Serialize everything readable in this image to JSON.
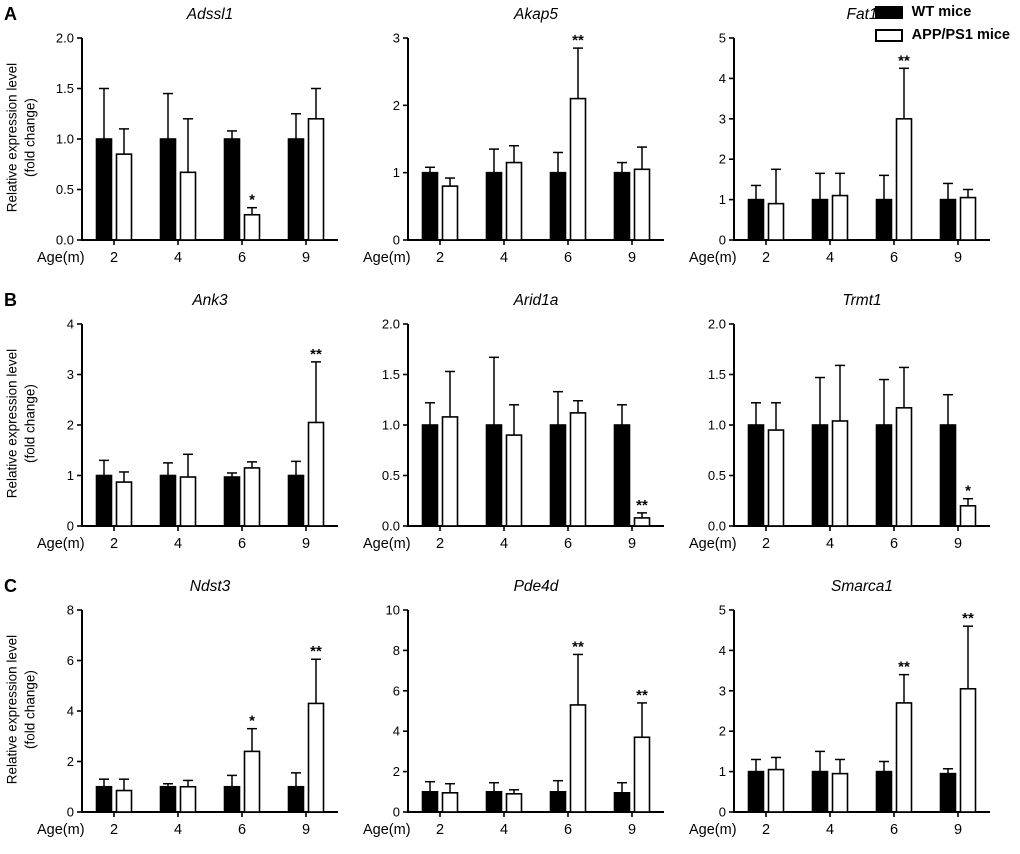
{
  "figure": {
    "panels": [
      "A",
      "B",
      "C"
    ],
    "ylabel": "Relative expression level\n(fold change)",
    "xlabel": "Age(m)",
    "categories": [
      "2",
      "4",
      "6",
      "9"
    ],
    "grid": false,
    "legend_position": "top-right",
    "colors": {
      "wt_fill": "#000000",
      "app_fill": "#ffffff",
      "axis": "#000000"
    },
    "legend": [
      {
        "label": "WT mice",
        "fill": "#000000"
      },
      {
        "label": "APP/PS1 mice",
        "fill": "#ffffff"
      }
    ]
  },
  "chart_data": [
    {
      "type": "bar",
      "panel": "A",
      "title": "Adssl1",
      "xlabel": "Age(m)",
      "categories": [
        "2",
        "4",
        "6",
        "9"
      ],
      "ylim": [
        0,
        2.0
      ],
      "ytick_labels": [
        "0.0",
        "0.5",
        "1.0",
        "1.5",
        "2.0"
      ],
      "series": [
        {
          "name": "WT mice",
          "values": [
            1.0,
            1.0,
            1.0,
            1.0
          ],
          "errors": [
            0.5,
            0.45,
            0.08,
            0.25
          ]
        },
        {
          "name": "APP/PS1 mice",
          "values": [
            0.85,
            0.67,
            0.25,
            1.2
          ],
          "errors": [
            0.25,
            0.53,
            0.07,
            0.3
          ]
        }
      ],
      "significance": [
        "",
        "",
        "*",
        ""
      ]
    },
    {
      "type": "bar",
      "panel": "A",
      "title": "Akap5",
      "xlabel": "Age(m)",
      "categories": [
        "2",
        "4",
        "6",
        "9"
      ],
      "ylim": [
        0,
        3
      ],
      "ytick_labels": [
        "0",
        "1",
        "2",
        "3"
      ],
      "series": [
        {
          "name": "WT mice",
          "values": [
            1.0,
            1.0,
            1.0,
            1.0
          ],
          "errors": [
            0.08,
            0.35,
            0.3,
            0.15
          ]
        },
        {
          "name": "APP/PS1 mice",
          "values": [
            0.8,
            1.15,
            2.1,
            1.05
          ],
          "errors": [
            0.12,
            0.25,
            0.75,
            0.33
          ]
        }
      ],
      "significance": [
        "",
        "",
        "**",
        ""
      ]
    },
    {
      "type": "bar",
      "panel": "A",
      "title": "Fat1",
      "xlabel": "Age(m)",
      "categories": [
        "2",
        "4",
        "6",
        "9"
      ],
      "ylim": [
        0,
        5
      ],
      "ytick_labels": [
        "0",
        "1",
        "2",
        "3",
        "4",
        "5"
      ],
      "series": [
        {
          "name": "WT mice",
          "values": [
            1.0,
            1.0,
            1.0,
            1.0
          ],
          "errors": [
            0.35,
            0.65,
            0.6,
            0.4
          ]
        },
        {
          "name": "APP/PS1 mice",
          "values": [
            0.9,
            1.1,
            3.0,
            1.05
          ],
          "errors": [
            0.85,
            0.55,
            1.25,
            0.2
          ]
        }
      ],
      "significance": [
        "",
        "",
        "**",
        ""
      ]
    },
    {
      "type": "bar",
      "panel": "B",
      "title": "Ank3",
      "xlabel": "Age(m)",
      "categories": [
        "2",
        "4",
        "6",
        "9"
      ],
      "ylim": [
        0,
        4
      ],
      "ytick_labels": [
        "0",
        "1",
        "2",
        "3",
        "4"
      ],
      "series": [
        {
          "name": "WT mice",
          "values": [
            1.0,
            1.0,
            0.97,
            1.0
          ],
          "errors": [
            0.3,
            0.25,
            0.08,
            0.28
          ]
        },
        {
          "name": "APP/PS1 mice",
          "values": [
            0.87,
            0.97,
            1.15,
            2.05
          ],
          "errors": [
            0.2,
            0.45,
            0.12,
            1.2
          ]
        }
      ],
      "significance": [
        "",
        "",
        "",
        "**"
      ]
    },
    {
      "type": "bar",
      "panel": "B",
      "title": "Arid1a",
      "xlabel": "Age(m)",
      "categories": [
        "2",
        "4",
        "6",
        "9"
      ],
      "ylim": [
        0,
        2.0
      ],
      "ytick_labels": [
        "0.0",
        "0.5",
        "1.0",
        "1.5",
        "2.0"
      ],
      "series": [
        {
          "name": "WT mice",
          "values": [
            1.0,
            1.0,
            1.0,
            1.0
          ],
          "errors": [
            0.22,
            0.67,
            0.33,
            0.2
          ]
        },
        {
          "name": "APP/PS1 mice",
          "values": [
            1.08,
            0.9,
            1.12,
            0.08
          ],
          "errors": [
            0.45,
            0.3,
            0.12,
            0.05
          ]
        }
      ],
      "significance": [
        "",
        "",
        "",
        "**"
      ]
    },
    {
      "type": "bar",
      "panel": "B",
      "title": "Trmt1",
      "xlabel": "Age(m)",
      "categories": [
        "2",
        "4",
        "6",
        "9"
      ],
      "ylim": [
        0,
        2.0
      ],
      "ytick_labels": [
        "0.0",
        "0.5",
        "1.0",
        "1.5",
        "2.0"
      ],
      "series": [
        {
          "name": "WT mice",
          "values": [
            1.0,
            1.0,
            1.0,
            1.0
          ],
          "errors": [
            0.22,
            0.47,
            0.45,
            0.3
          ]
        },
        {
          "name": "APP/PS1 mice",
          "values": [
            0.95,
            1.04,
            1.17,
            0.2
          ],
          "errors": [
            0.27,
            0.55,
            0.4,
            0.07
          ]
        }
      ],
      "significance": [
        "",
        "",
        "",
        "*"
      ]
    },
    {
      "type": "bar",
      "panel": "C",
      "title": "Ndst3",
      "xlabel": "Age(m)",
      "categories": [
        "2",
        "4",
        "6",
        "9"
      ],
      "ylim": [
        0,
        8
      ],
      "ytick_labels": [
        "0",
        "2",
        "4",
        "6",
        "8"
      ],
      "series": [
        {
          "name": "WT mice",
          "values": [
            1.0,
            1.0,
            1.0,
            1.0
          ],
          "errors": [
            0.3,
            0.12,
            0.45,
            0.55
          ]
        },
        {
          "name": "APP/PS1 mice",
          "values": [
            0.85,
            1.0,
            2.4,
            4.3
          ],
          "errors": [
            0.45,
            0.25,
            0.9,
            1.75
          ]
        }
      ],
      "significance": [
        "",
        "",
        "*",
        "**"
      ]
    },
    {
      "type": "bar",
      "panel": "C",
      "title": "Pde4d",
      "xlabel": "Age(m)",
      "categories": [
        "2",
        "4",
        "6",
        "9"
      ],
      "ylim": [
        0,
        10
      ],
      "ytick_labels": [
        "0",
        "2",
        "4",
        "6",
        "8",
        "10"
      ],
      "series": [
        {
          "name": "WT mice",
          "values": [
            1.0,
            1.0,
            1.0,
            0.95
          ],
          "errors": [
            0.5,
            0.45,
            0.55,
            0.5
          ]
        },
        {
          "name": "APP/PS1 mice",
          "values": [
            0.95,
            0.9,
            5.3,
            3.7
          ],
          "errors": [
            0.45,
            0.2,
            2.5,
            1.7
          ]
        }
      ],
      "significance": [
        "",
        "",
        "**",
        "**"
      ]
    },
    {
      "type": "bar",
      "panel": "C",
      "title": "Smarca1",
      "xlabel": "Age(m)",
      "categories": [
        "2",
        "4",
        "6",
        "9"
      ],
      "ylim": [
        0,
        5
      ],
      "ytick_labels": [
        "0",
        "1",
        "2",
        "3",
        "4",
        "5"
      ],
      "series": [
        {
          "name": "WT mice",
          "values": [
            1.0,
            1.0,
            1.0,
            0.95
          ],
          "errors": [
            0.3,
            0.5,
            0.25,
            0.12
          ]
        },
        {
          "name": "APP/PS1 mice",
          "values": [
            1.05,
            0.95,
            2.7,
            3.05
          ],
          "errors": [
            0.3,
            0.35,
            0.7,
            1.55
          ]
        }
      ],
      "significance": [
        "",
        "",
        "**",
        "**"
      ]
    }
  ]
}
